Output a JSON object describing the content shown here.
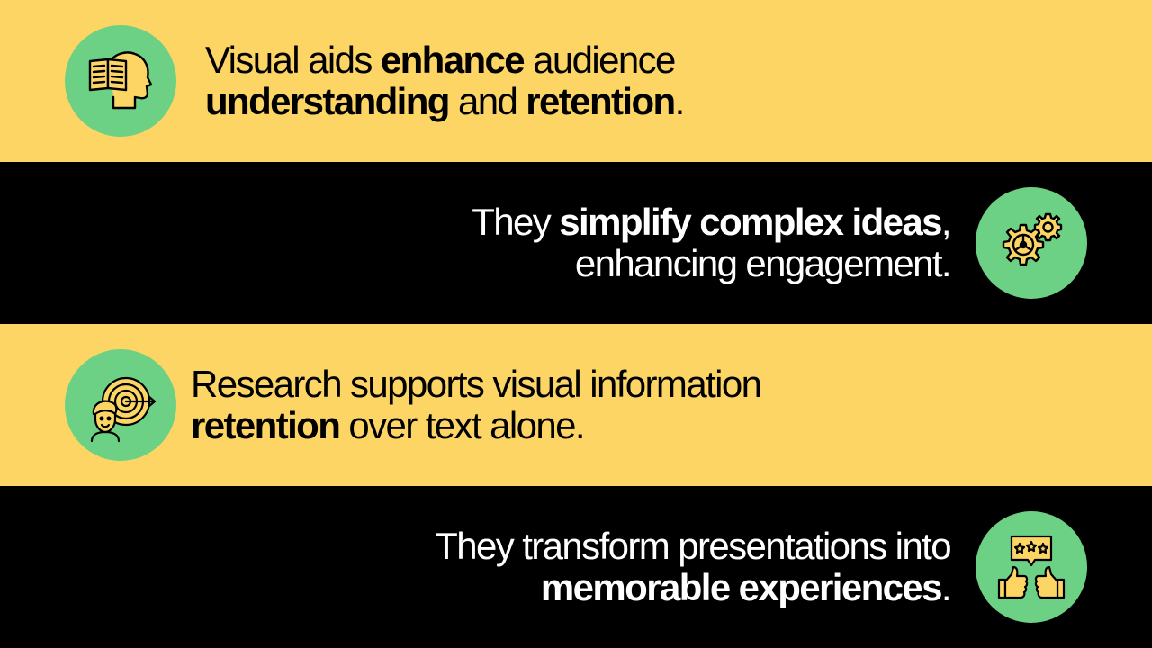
{
  "colors": {
    "yellow": "#FDD564",
    "black": "#000000",
    "green": "#6DD185",
    "icon_fill": "#FDD564",
    "icon_stroke": "#000000"
  },
  "rows": [
    {
      "icon": "book-head-icon",
      "line1": {
        "p1": "Visual aids ",
        "b1": "enhance",
        "p2": " audience"
      },
      "line2": {
        "b1": "understanding",
        "p1": " and ",
        "b2": "retention",
        "p2": "."
      }
    },
    {
      "icon": "gears-icon",
      "line1": {
        "p1": "They ",
        "b1": "simplify complex ideas",
        "p2": ","
      },
      "line2": {
        "p1": "enhancing engagement."
      }
    },
    {
      "icon": "person-target-icon",
      "line1": {
        "p1": "Research supports visual information"
      },
      "line2": {
        "b1": "retention",
        "p1": " over text alone."
      }
    },
    {
      "icon": "thumbs-up-rating-icon",
      "line1": {
        "p1": "They transform presentations into"
      },
      "line2": {
        "b1": "memorable experiences",
        "p1": "."
      }
    }
  ]
}
